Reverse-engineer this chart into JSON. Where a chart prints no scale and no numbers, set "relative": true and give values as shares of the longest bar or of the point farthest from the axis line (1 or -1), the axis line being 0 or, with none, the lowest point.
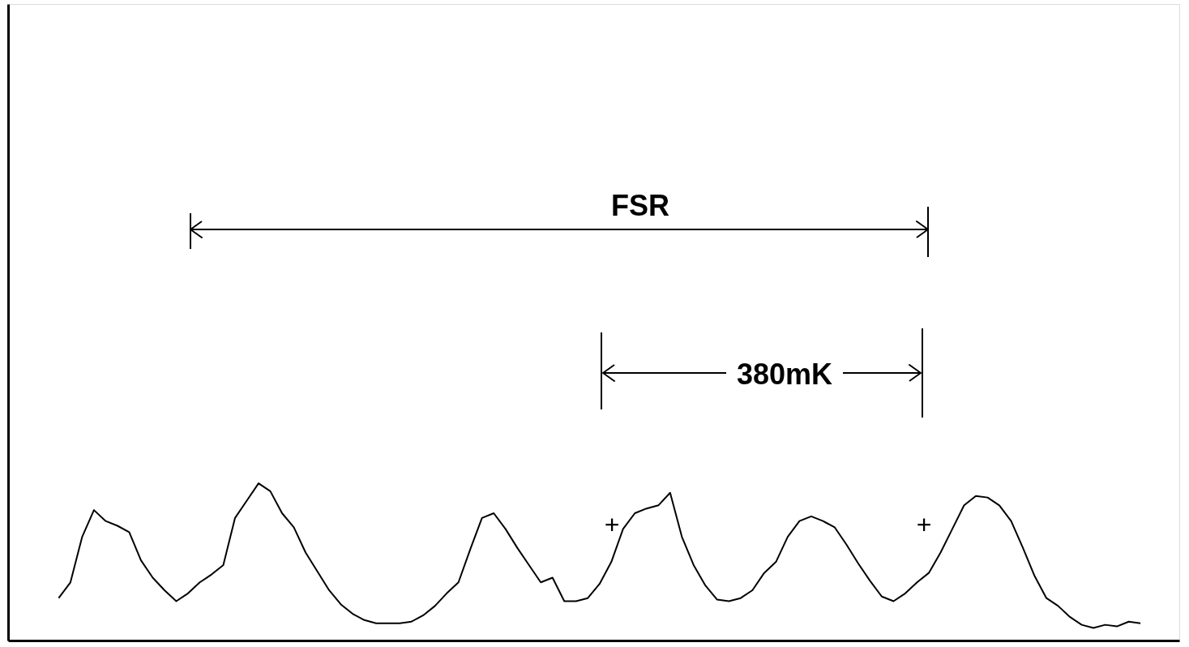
{
  "chart_data": {
    "type": "line",
    "relative": true,
    "tick_labels": false,
    "grid": false,
    "marker": "none",
    "line_style": "solid",
    "categories": [
      null,
      null,
      null,
      null,
      null,
      null,
      null,
      null,
      null,
      null,
      null,
      null,
      null,
      null,
      null,
      null,
      null,
      null,
      null,
      null,
      null,
      null,
      null,
      null,
      null,
      null,
      null,
      null,
      null,
      null,
      null,
      null,
      null,
      null,
      null,
      null,
      null,
      null,
      null,
      null,
      null,
      null,
      null,
      null,
      null,
      null,
      null,
      null,
      null,
      null,
      null,
      null,
      null,
      null,
      null,
      null,
      null,
      null,
      null,
      null,
      null,
      null,
      null,
      null,
      null,
      null,
      null,
      null,
      null,
      null,
      null,
      null,
      null,
      null,
      null,
      null,
      null,
      null,
      null,
      null,
      null,
      null,
      null,
      null,
      null,
      null,
      null,
      null,
      null,
      null,
      null,
      null,
      null
    ],
    "series": [
      {
        "color": "#000000",
        "values": [
          0.27,
          0.37,
          0.66,
          0.83,
          0.76,
          0.73,
          0.69,
          0.51,
          0.4,
          0.32,
          0.25,
          0.3,
          0.37,
          0.42,
          0.48,
          0.78,
          0.89,
          1.0,
          0.95,
          0.81,
          0.72,
          0.56,
          0.44,
          0.32,
          0.23,
          0.17,
          0.13,
          0.11,
          0.11,
          0.11,
          0.12,
          0.16,
          0.22,
          0.3,
          0.37,
          0.58,
          0.78,
          0.81,
          0.71,
          0.59,
          0.48,
          0.37,
          0.4,
          0.25,
          0.25,
          0.27,
          0.36,
          0.5,
          0.71,
          0.81,
          0.84,
          0.86,
          0.94,
          0.66,
          0.48,
          0.35,
          0.26,
          0.25,
          0.27,
          0.32,
          0.43,
          0.5,
          0.66,
          0.76,
          0.79,
          0.76,
          0.72,
          0.61,
          0.49,
          0.38,
          0.28,
          0.25,
          0.3,
          0.37,
          0.43,
          0.56,
          0.71,
          0.86,
          0.92,
          0.91,
          0.86,
          0.76,
          0.59,
          0.41,
          0.27,
          0.22,
          0.15,
          0.1,
          0.08,
          0.1,
          0.09,
          0.12,
          0.11
        ]
      }
    ],
    "annotations": [
      "FSR",
      "380mK",
      "+",
      "+"
    ]
  }
}
